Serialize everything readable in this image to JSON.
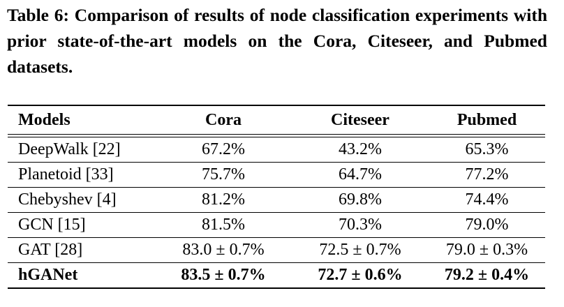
{
  "caption": {
    "text": "Table 6: Comparison of results of node classification experiments with prior state-of-the-art models on the Cora, Citeseer, and Pubmed datasets."
  },
  "table": {
    "headers": [
      "Models",
      "Cora",
      "Citeseer",
      "Pubmed"
    ],
    "rows": [
      {
        "model": "DeepWalk [22]",
        "cora": "67.2%",
        "citeseer": "43.2%",
        "pubmed": "65.3%",
        "bold": false
      },
      {
        "model": "Planetoid [33]",
        "cora": "75.7%",
        "citeseer": "64.7%",
        "pubmed": "77.2%",
        "bold": false
      },
      {
        "model": "Chebyshev [4]",
        "cora": "81.2%",
        "citeseer": "69.8%",
        "pubmed": "74.4%",
        "bold": false
      },
      {
        "model": "GCN [15]",
        "cora": "81.5%",
        "citeseer": "70.3%",
        "pubmed": "79.0%",
        "bold": false
      },
      {
        "model": "GAT [28]",
        "cora": "83.0 ± 0.7%",
        "citeseer": "72.5 ± 0.7%",
        "pubmed": "79.0 ± 0.3%",
        "bold": false
      },
      {
        "model": "hGANet",
        "cora": "83.5 ± 0.7%",
        "citeseer": "72.7 ± 0.6%",
        "pubmed": "79.2 ± 0.4%",
        "bold": true
      }
    ]
  }
}
